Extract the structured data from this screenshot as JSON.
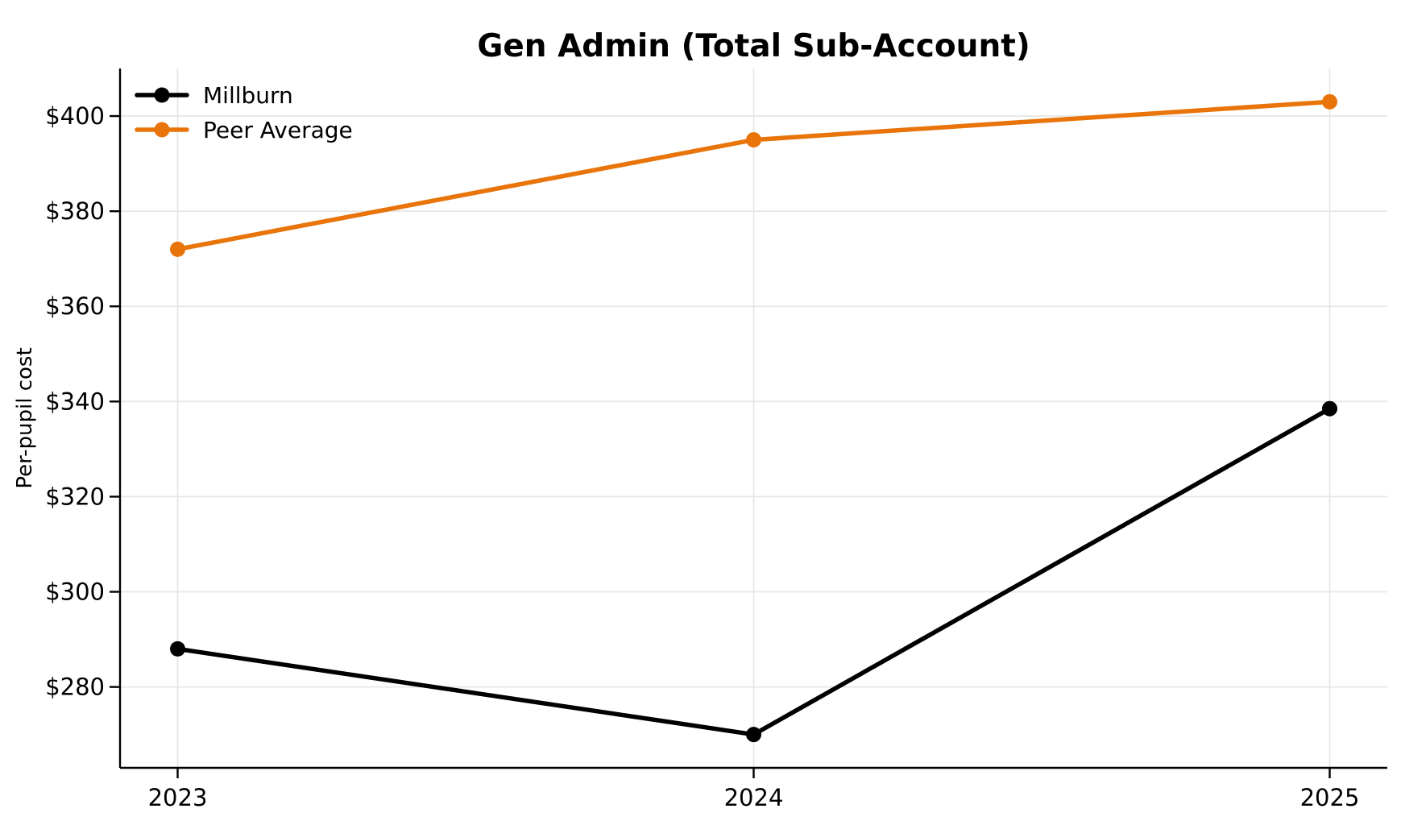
{
  "chart_data": {
    "type": "line",
    "title": "Gen Admin (Total Sub-Account)",
    "xlabel": "",
    "ylabel": "Per-pupil cost",
    "x": [
      2023,
      2024,
      2025
    ],
    "xtick_labels": [
      "2023",
      "2024",
      "2025"
    ],
    "yticks": [
      280,
      300,
      320,
      340,
      360,
      380,
      400
    ],
    "ytick_labels": [
      "$280",
      "$300",
      "$320",
      "$340",
      "$360",
      "$380",
      "$400"
    ],
    "xlim": [
      2022.9,
      2025.1
    ],
    "ylim": [
      263,
      410
    ],
    "grid": true,
    "grid_color": "#e7e7e7",
    "axis_color": "#000000",
    "text_color": "#000000",
    "background_color": "#ffffff",
    "legend_position": "upper left",
    "series": [
      {
        "name": "Millburn",
        "color": "#000000",
        "values": [
          288,
          270,
          338.5
        ]
      },
      {
        "name": "Peer Average",
        "color": "#e8740a",
        "values": [
          372,
          395,
          403
        ]
      }
    ]
  }
}
